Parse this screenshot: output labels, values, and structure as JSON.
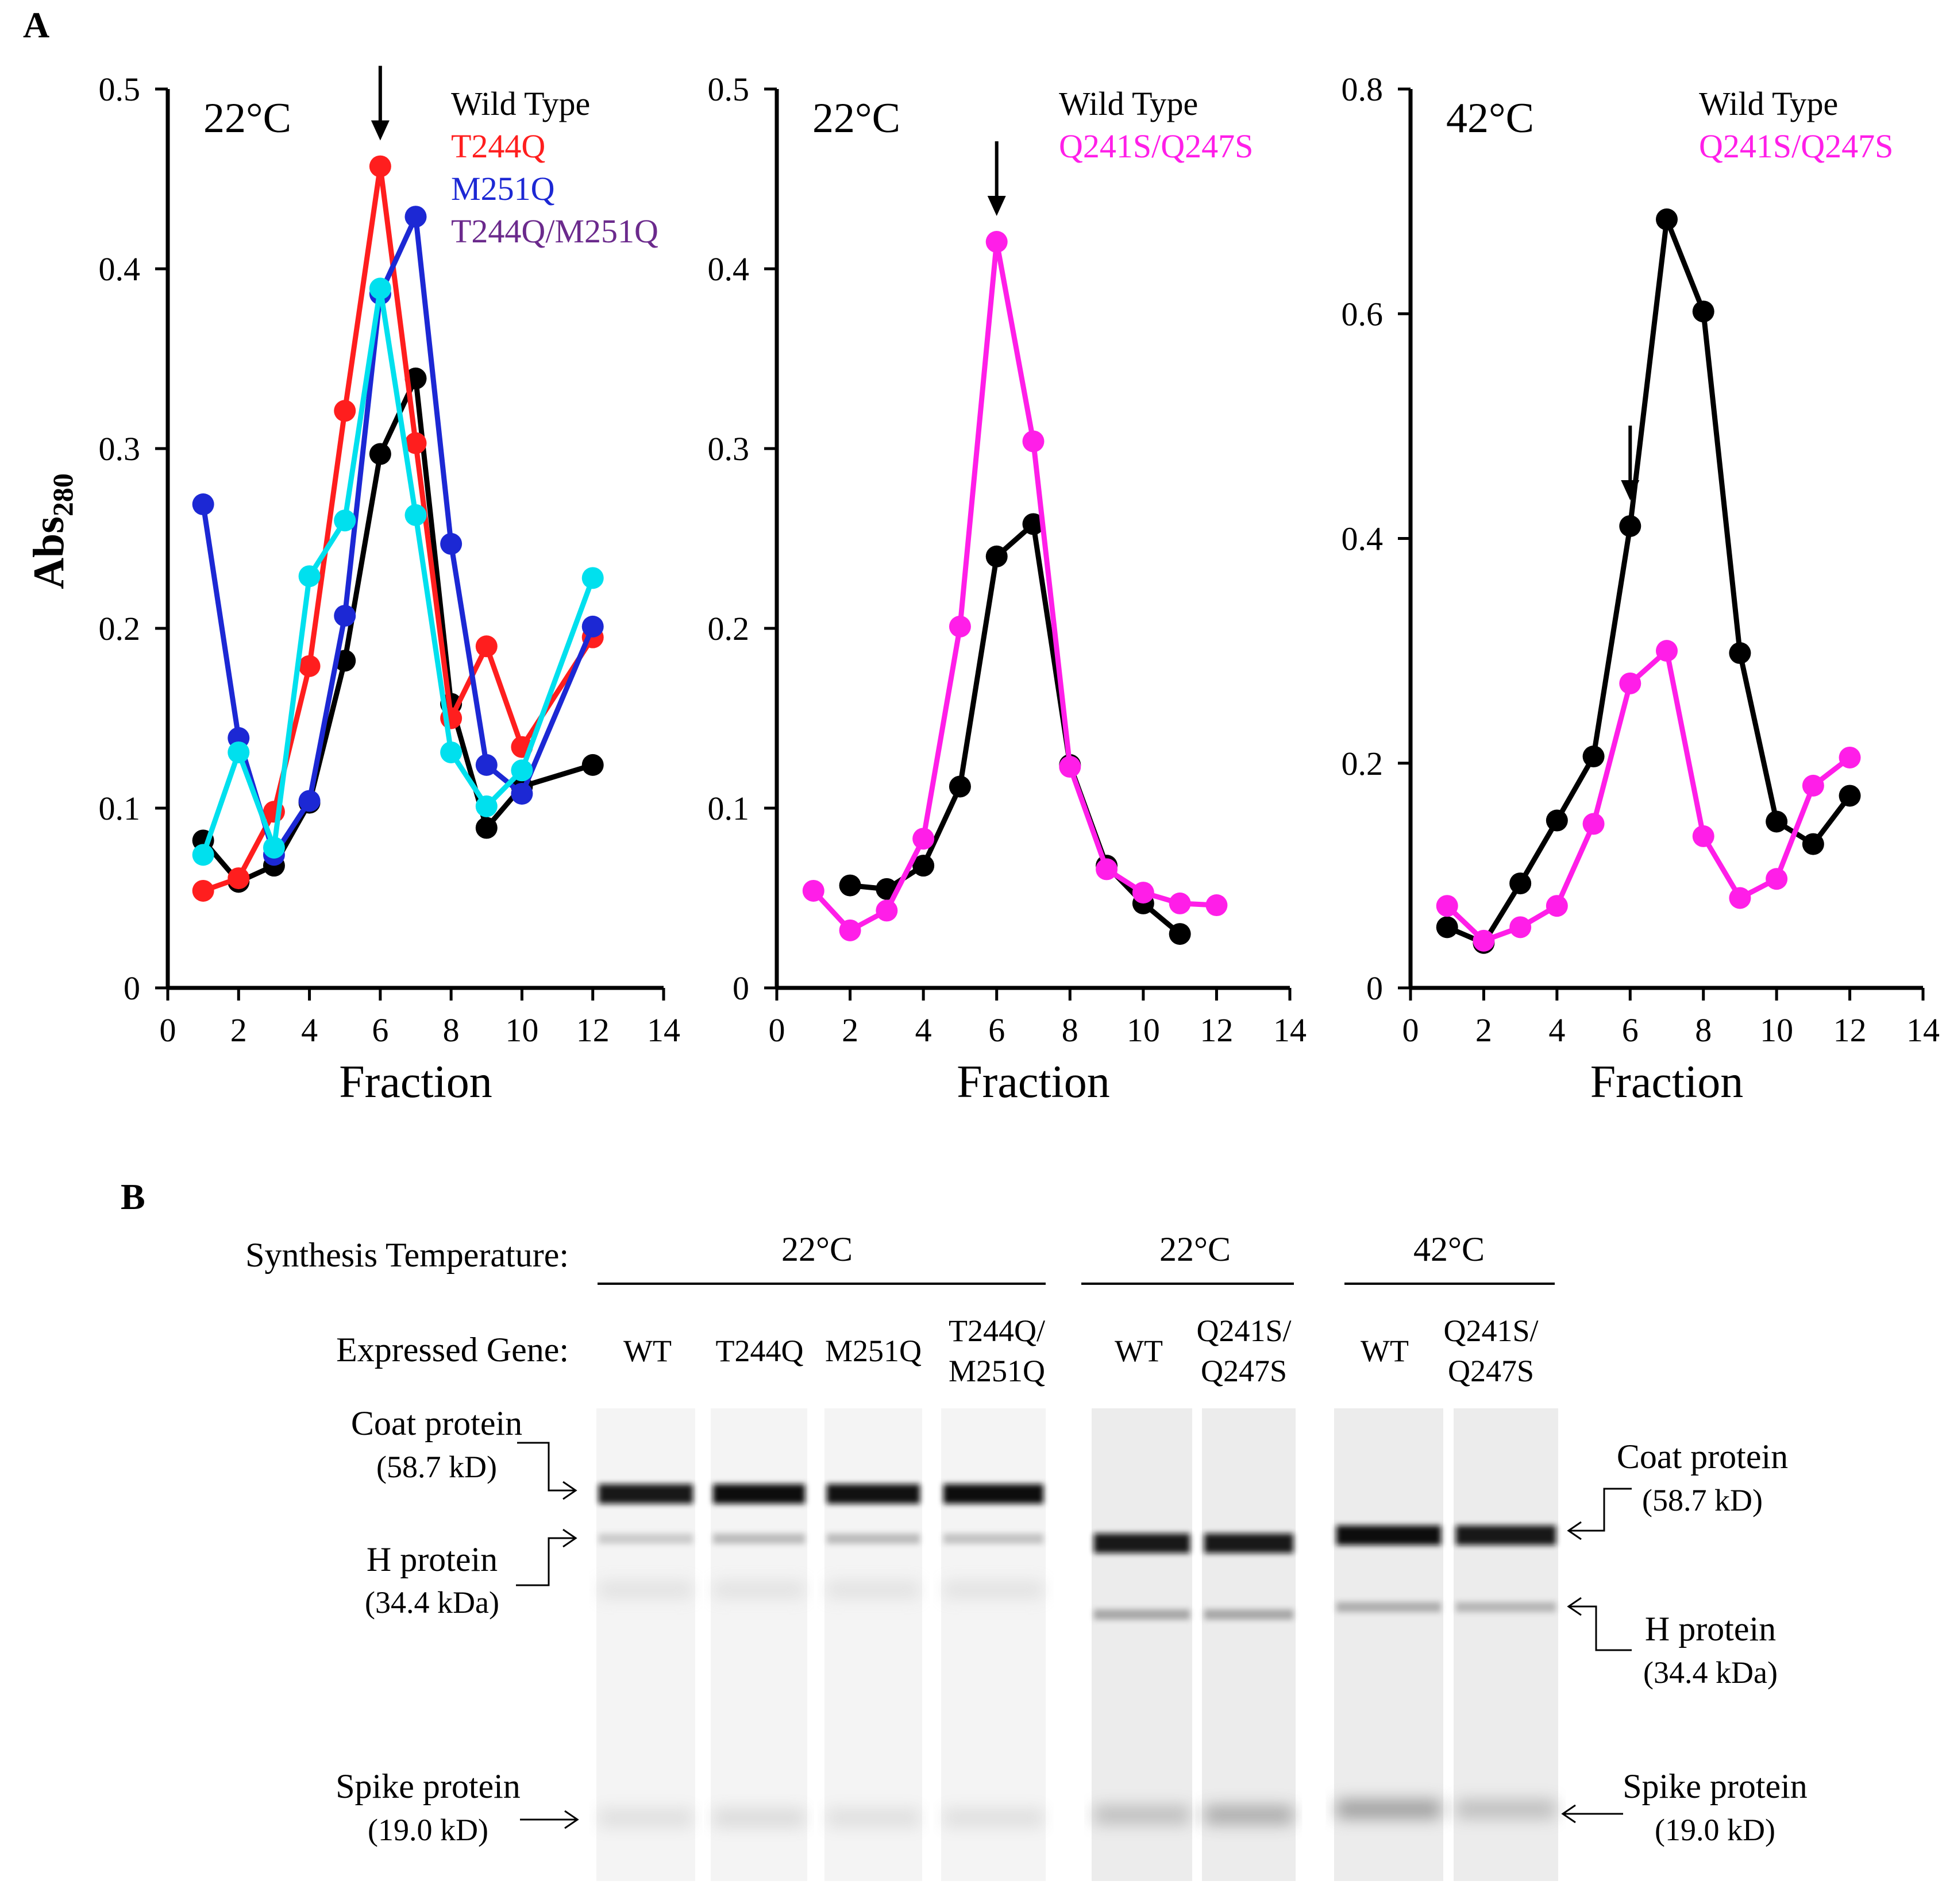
{
  "panels": {
    "a": "A",
    "b": "B"
  },
  "colors": {
    "wild_type": "#000000",
    "t244q": "#ff1e1e",
    "m251q": "#1c28d4",
    "t244q_m251q": "#00e0ee",
    "t244q_m251q_label": "#6b2a8c",
    "q241s_q247s": "#ff1ee8",
    "gel_background": "#ececec",
    "band": "#111111"
  },
  "chart_data": [
    {
      "type": "line",
      "temperature_label": "22°C",
      "xlabel": "Fraction",
      "ylabel": "Abs280",
      "ylabel_main": "Abs",
      "ylabel_sub": "280",
      "xlim": [
        0,
        14
      ],
      "ylim": [
        0,
        0.5
      ],
      "x_ticks": [
        0,
        2,
        4,
        6,
        8,
        10,
        12,
        14
      ],
      "y_ticks": [
        0,
        0.1,
        0.2,
        0.3,
        0.4,
        0.5
      ],
      "y_tick_labels": [
        "0",
        "0.1",
        "0.2",
        "0.3",
        "0.4",
        "0.5"
      ],
      "arrow_fraction": 6,
      "legend": [
        {
          "text": "Wild Type",
          "color": "#000000"
        },
        {
          "text": "T244Q",
          "color": "#ff1e1e"
        },
        {
          "text": "M251Q",
          "color": "#1c28d4"
        },
        {
          "text": "T244Q/M251Q",
          "color": "#6b2a8c"
        }
      ],
      "series": [
        {
          "name": "Wild Type",
          "color": "#000000",
          "x": [
            1,
            2,
            3,
            4,
            5,
            6,
            7,
            8,
            9,
            10,
            12
          ],
          "values": [
            0.082,
            0.059,
            0.068,
            0.103,
            0.182,
            0.297,
            0.339,
            0.158,
            0.089,
            0.112,
            0.124
          ]
        },
        {
          "name": "T244Q",
          "color": "#ff1e1e",
          "x": [
            1,
            2,
            3,
            4,
            5,
            6,
            7,
            8,
            9,
            10,
            12
          ],
          "values": [
            0.054,
            0.061,
            0.098,
            0.179,
            0.321,
            0.457,
            0.303,
            0.15,
            0.19,
            0.134,
            0.195
          ]
        },
        {
          "name": "M251Q",
          "color": "#1c28d4",
          "x": [
            1,
            2,
            3,
            4,
            5,
            6,
            7,
            8,
            9,
            10,
            12
          ],
          "values": [
            0.269,
            0.139,
            0.074,
            0.104,
            0.207,
            0.386,
            0.429,
            0.247,
            0.124,
            0.108,
            0.201
          ]
        },
        {
          "name": "T244Q/M251Q",
          "color": "#00e0ee",
          "x": [
            1,
            2,
            3,
            4,
            5,
            6,
            7,
            8,
            9,
            10,
            12
          ],
          "values": [
            0.074,
            0.131,
            0.078,
            0.229,
            0.26,
            0.389,
            0.263,
            0.131,
            0.101,
            0.121,
            0.228
          ]
        }
      ]
    },
    {
      "type": "line",
      "temperature_label": "22°C",
      "xlabel": "Fraction",
      "xlim": [
        0,
        14
      ],
      "ylim": [
        0,
        0.5
      ],
      "x_ticks": [
        0,
        2,
        4,
        6,
        8,
        10,
        12,
        14
      ],
      "y_ticks": [
        0,
        0.1,
        0.2,
        0.3,
        0.4,
        0.5
      ],
      "y_tick_labels": [
        "0",
        "0.1",
        "0.2",
        "0.3",
        "0.4",
        "0.5"
      ],
      "arrow_fraction": 6,
      "legend": [
        {
          "text": "Wild Type",
          "color": "#000000"
        },
        {
          "text": "Q241S/Q247S",
          "color": "#ff1ee8"
        }
      ],
      "series": [
        {
          "name": "Wild Type",
          "color": "#000000",
          "x": [
            2,
            3,
            4,
            5,
            6,
            7,
            8,
            9,
            10,
            11
          ],
          "values": [
            0.057,
            0.055,
            0.068,
            0.112,
            0.24,
            0.258,
            0.124,
            0.068,
            0.047,
            0.03
          ]
        },
        {
          "name": "Q241S/Q247S",
          "color": "#ff1ee8",
          "x": [
            1,
            2,
            3,
            4,
            5,
            6,
            7,
            8,
            9,
            10,
            11,
            12
          ],
          "values": [
            0.054,
            0.032,
            0.043,
            0.083,
            0.201,
            0.415,
            0.304,
            0.123,
            0.066,
            0.053,
            0.047,
            0.046
          ]
        }
      ]
    },
    {
      "type": "line",
      "temperature_label": "42°C",
      "xlabel": "Fraction",
      "xlim": [
        0,
        14
      ],
      "ylim": [
        0,
        0.8
      ],
      "x_ticks": [
        0,
        2,
        4,
        6,
        8,
        10,
        12,
        14
      ],
      "y_ticks": [
        0,
        0.2,
        0.4,
        0.6,
        0.8
      ],
      "y_tick_labels": [
        "0",
        "0.2",
        "0.4",
        "0.6",
        "0.8"
      ],
      "arrow_fraction": 6,
      "legend": [
        {
          "text": "Wild Type",
          "color": "#000000"
        },
        {
          "text": "Q241S/Q247S",
          "color": "#ff1ee8"
        }
      ],
      "series": [
        {
          "name": "Wild Type",
          "color": "#000000",
          "x": [
            1,
            2,
            3,
            4,
            5,
            6,
            7,
            8,
            9,
            10,
            11,
            12
          ],
          "values": [
            0.054,
            0.04,
            0.093,
            0.149,
            0.206,
            0.411,
            0.684,
            0.602,
            0.298,
            0.148,
            0.128,
            0.171
          ]
        },
        {
          "name": "Q241S/Q247S",
          "color": "#ff1ee8",
          "x": [
            1,
            2,
            3,
            4,
            5,
            6,
            7,
            8,
            9,
            10,
            11,
            12
          ],
          "values": [
            0.073,
            0.042,
            0.054,
            0.073,
            0.146,
            0.271,
            0.3,
            0.135,
            0.08,
            0.097,
            0.18,
            0.205
          ]
        }
      ]
    }
  ],
  "gel": {
    "synthesis_temperature_label": "Synthesis Temperature:",
    "expressed_gene_label": "Expressed Gene:",
    "groups": [
      {
        "temperature": "22°C",
        "lanes": [
          {
            "line1": "WT",
            "line2": ""
          },
          {
            "line1": "T244Q",
            "line2": ""
          },
          {
            "line1": "M251Q",
            "line2": ""
          },
          {
            "line1": "T244Q/",
            "line2": "M251Q"
          }
        ],
        "band_intensity": {
          "coat": [
            0.95,
            1.0,
            0.98,
            1.0
          ],
          "h": [
            0.25,
            0.35,
            0.35,
            0.3
          ],
          "spike": [
            0.15,
            0.18,
            0.15,
            0.15
          ]
        }
      },
      {
        "temperature": "22°C",
        "lanes": [
          {
            "line1": "WT",
            "line2": ""
          },
          {
            "line1": "Q241S/",
            "line2": "Q247S"
          }
        ],
        "band_intensity": {
          "coat": [
            0.95,
            0.95
          ],
          "h": [
            0.45,
            0.45
          ],
          "spike": [
            0.35,
            0.5
          ]
        }
      },
      {
        "temperature": "42°C",
        "lanes": [
          {
            "line1": "WT",
            "line2": ""
          },
          {
            "line1": "Q241S/",
            "line2": "Q247S"
          }
        ],
        "band_intensity": {
          "coat": [
            1.0,
            0.95
          ],
          "h": [
            0.4,
            0.35
          ],
          "spike": [
            0.6,
            0.35
          ]
        }
      }
    ],
    "markers_left": {
      "coat": {
        "name": "Coat protein",
        "mw": "(58.7 kD)"
      },
      "h": {
        "name": "H protein",
        "mw": "(34.4 kDa)"
      },
      "spike": {
        "name": "Spike protein",
        "mw": "(19.0 kD)"
      }
    },
    "markers_right": {
      "coat": {
        "name": "Coat protein",
        "mw": "(58.7 kD)"
      },
      "h": {
        "name": "H protein",
        "mw": "(34.4 kDa)"
      },
      "spike": {
        "name": "Spike protein",
        "mw": "(19.0 kD)"
      }
    }
  }
}
